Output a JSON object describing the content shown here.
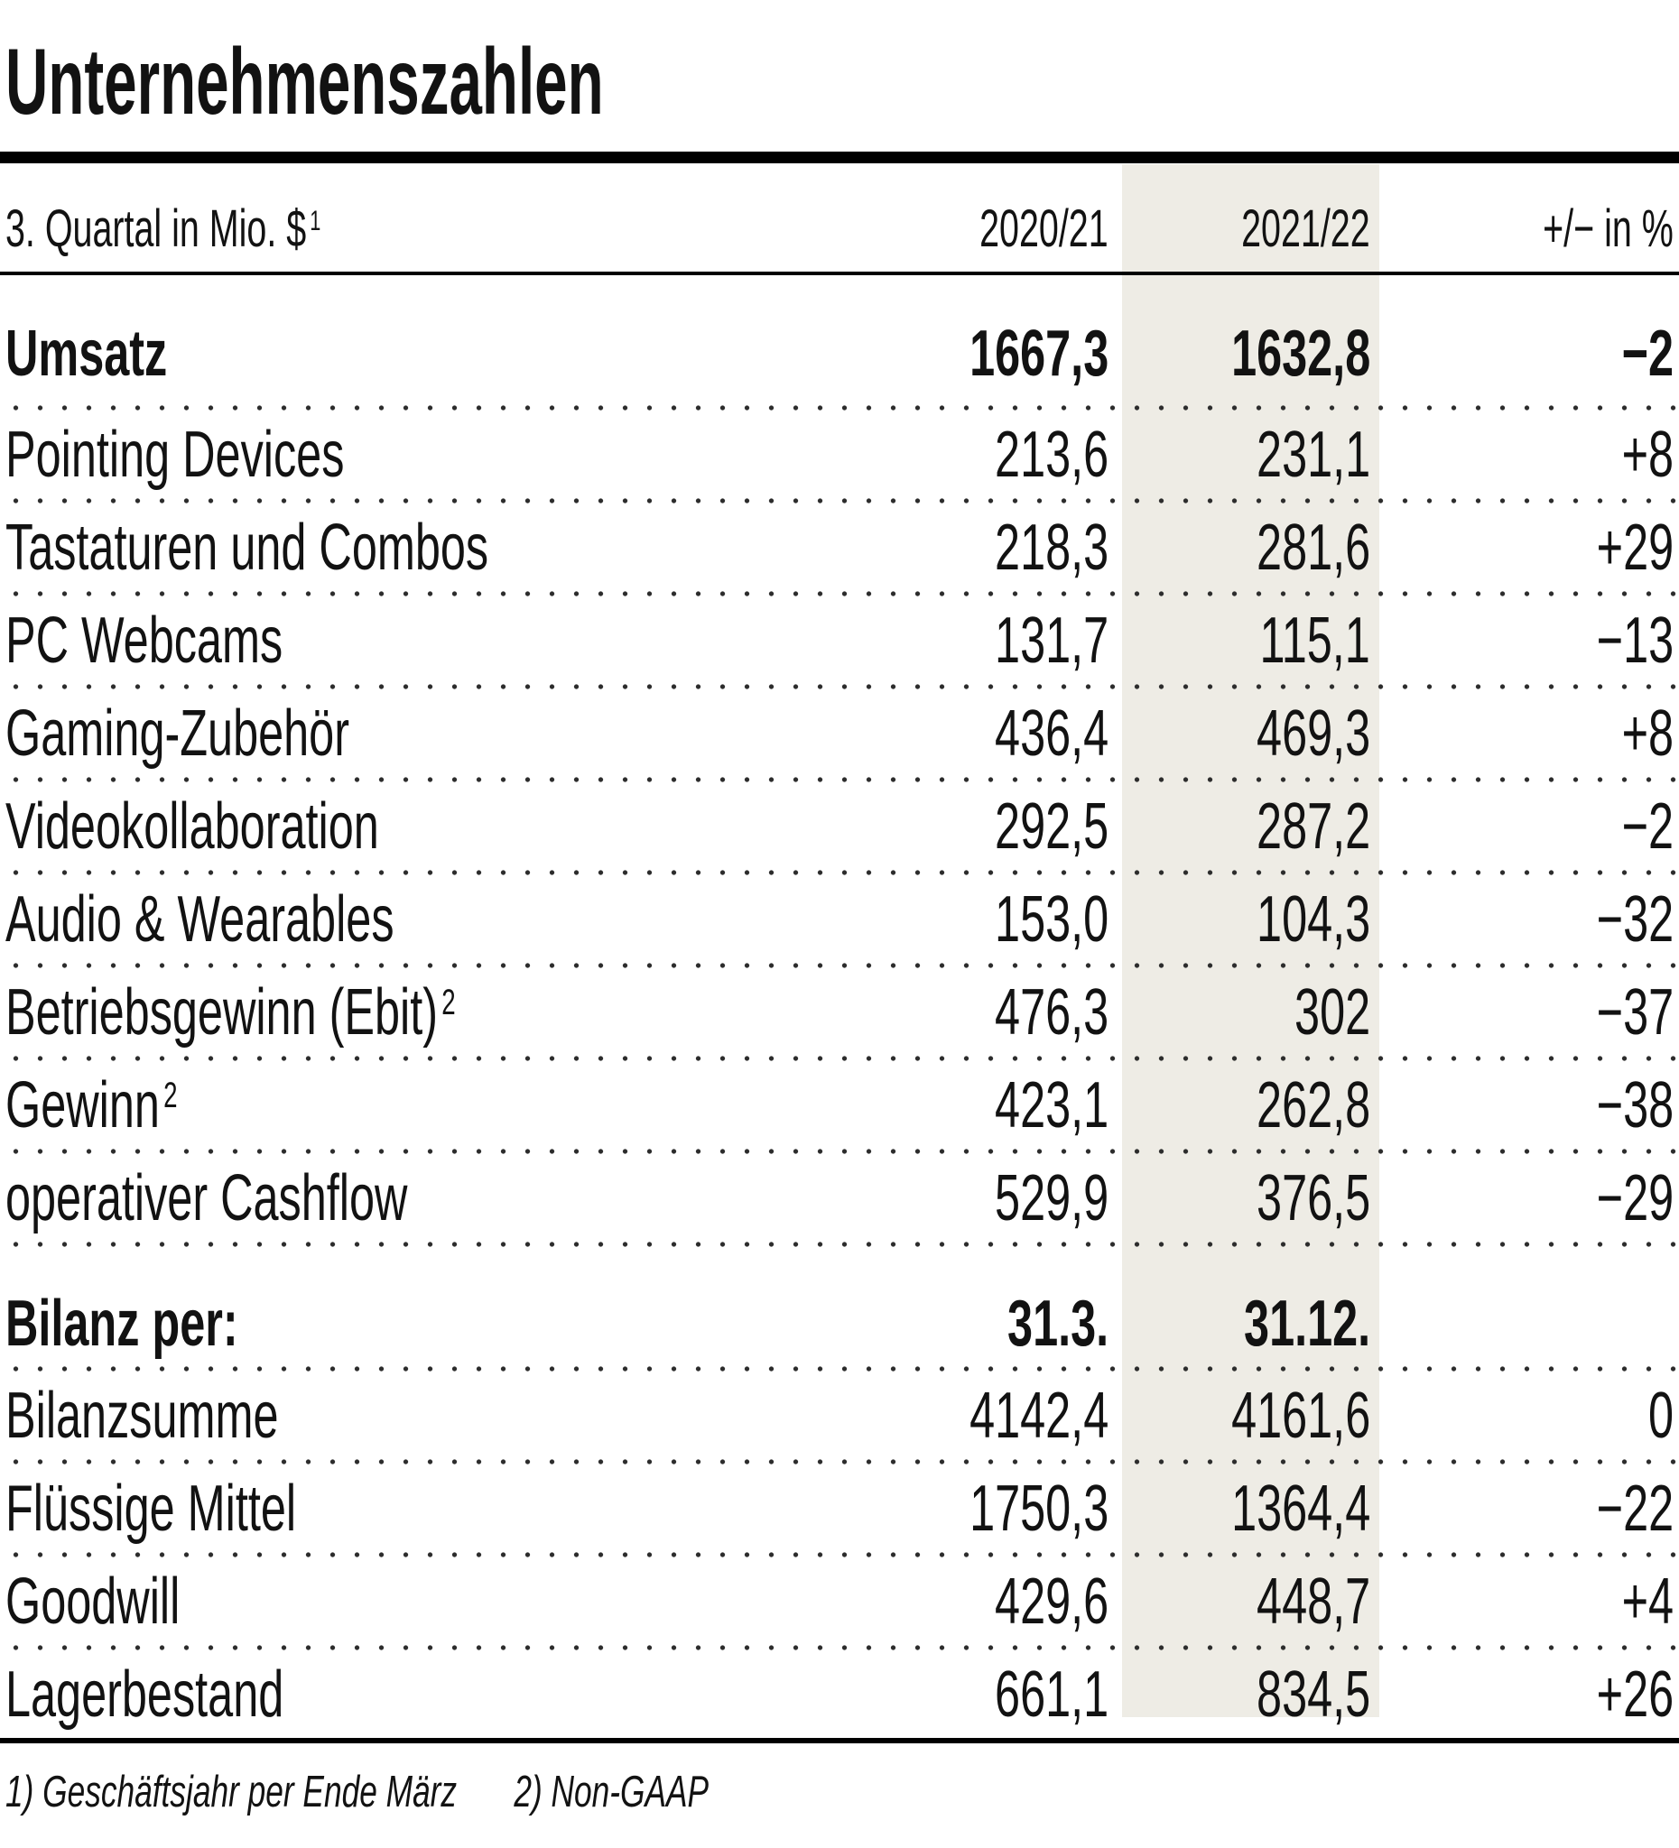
{
  "chart_data": {
    "type": "table",
    "title": "Unternehmenszahlen",
    "header": {
      "label": "3. Quartal in Mio. $",
      "label_sup": "1",
      "col_prev": "2020/21",
      "col_curr": "2021/22",
      "col_change": "+/− in %"
    },
    "rows": [
      {
        "label": "Umsatz",
        "sup": "",
        "prev": "1667,3",
        "curr": "1632,8",
        "change": "−2",
        "bold": true,
        "section": false
      },
      {
        "label": "Pointing Devices",
        "sup": "",
        "prev": "213,6",
        "curr": "231,1",
        "change": "+8",
        "bold": false,
        "section": false
      },
      {
        "label": "Tastaturen und Combos",
        "sup": "",
        "prev": "218,3",
        "curr": "281,6",
        "change": "+29",
        "bold": false,
        "section": false
      },
      {
        "label": "PC Webcams",
        "sup": "",
        "prev": "131,7",
        "curr": "115,1",
        "change": "−13",
        "bold": false,
        "section": false
      },
      {
        "label": "Gaming-Zubehör",
        "sup": "",
        "prev": "436,4",
        "curr": "469,3",
        "change": "+8",
        "bold": false,
        "section": false
      },
      {
        "label": "Videokollaboration",
        "sup": "",
        "prev": "292,5",
        "curr": "287,2",
        "change": "−2",
        "bold": false,
        "section": false
      },
      {
        "label": "Audio & Wearables",
        "sup": "",
        "prev": "153,0",
        "curr": "104,3",
        "change": "−32",
        "bold": false,
        "section": false
      },
      {
        "label": "Betriebsgewinn (Ebit)",
        "sup": "2",
        "prev": "476,3",
        "curr": "302",
        "change": "−37",
        "bold": false,
        "section": false
      },
      {
        "label": "Gewinn",
        "sup": "2",
        "prev": "423,1",
        "curr": "262,8",
        "change": "−38",
        "bold": false,
        "section": false
      },
      {
        "label": "operativer Cashflow",
        "sup": "",
        "prev": "529,9",
        "curr": "376,5",
        "change": "−29",
        "bold": false,
        "section": false
      },
      {
        "label": "Bilanz per:",
        "sup": "",
        "prev": "31.3.",
        "curr": "31.12.",
        "change": "",
        "bold": true,
        "section": true
      },
      {
        "label": "Bilanzsumme",
        "sup": "",
        "prev": "4142,4",
        "curr": "4161,6",
        "change": "0",
        "bold": false,
        "section": false
      },
      {
        "label": "Flüssige Mittel",
        "sup": "",
        "prev": "1750,3",
        "curr": "1364,4",
        "change": "−22",
        "bold": false,
        "section": false
      },
      {
        "label": "Goodwill",
        "sup": "",
        "prev": "429,6",
        "curr": "448,7",
        "change": "+4",
        "bold": false,
        "section": false
      },
      {
        "label": "Lagerbestand",
        "sup": "",
        "prev": "661,1",
        "curr": "834,5",
        "change": "+26",
        "bold": false,
        "section": false
      }
    ],
    "footnotes": [
      "1) Geschäftsjahr per Ende März",
      "2) Non-GAAP"
    ]
  },
  "colors": {
    "band": "#eeece5",
    "rule": "#000000",
    "text": "#121212"
  }
}
